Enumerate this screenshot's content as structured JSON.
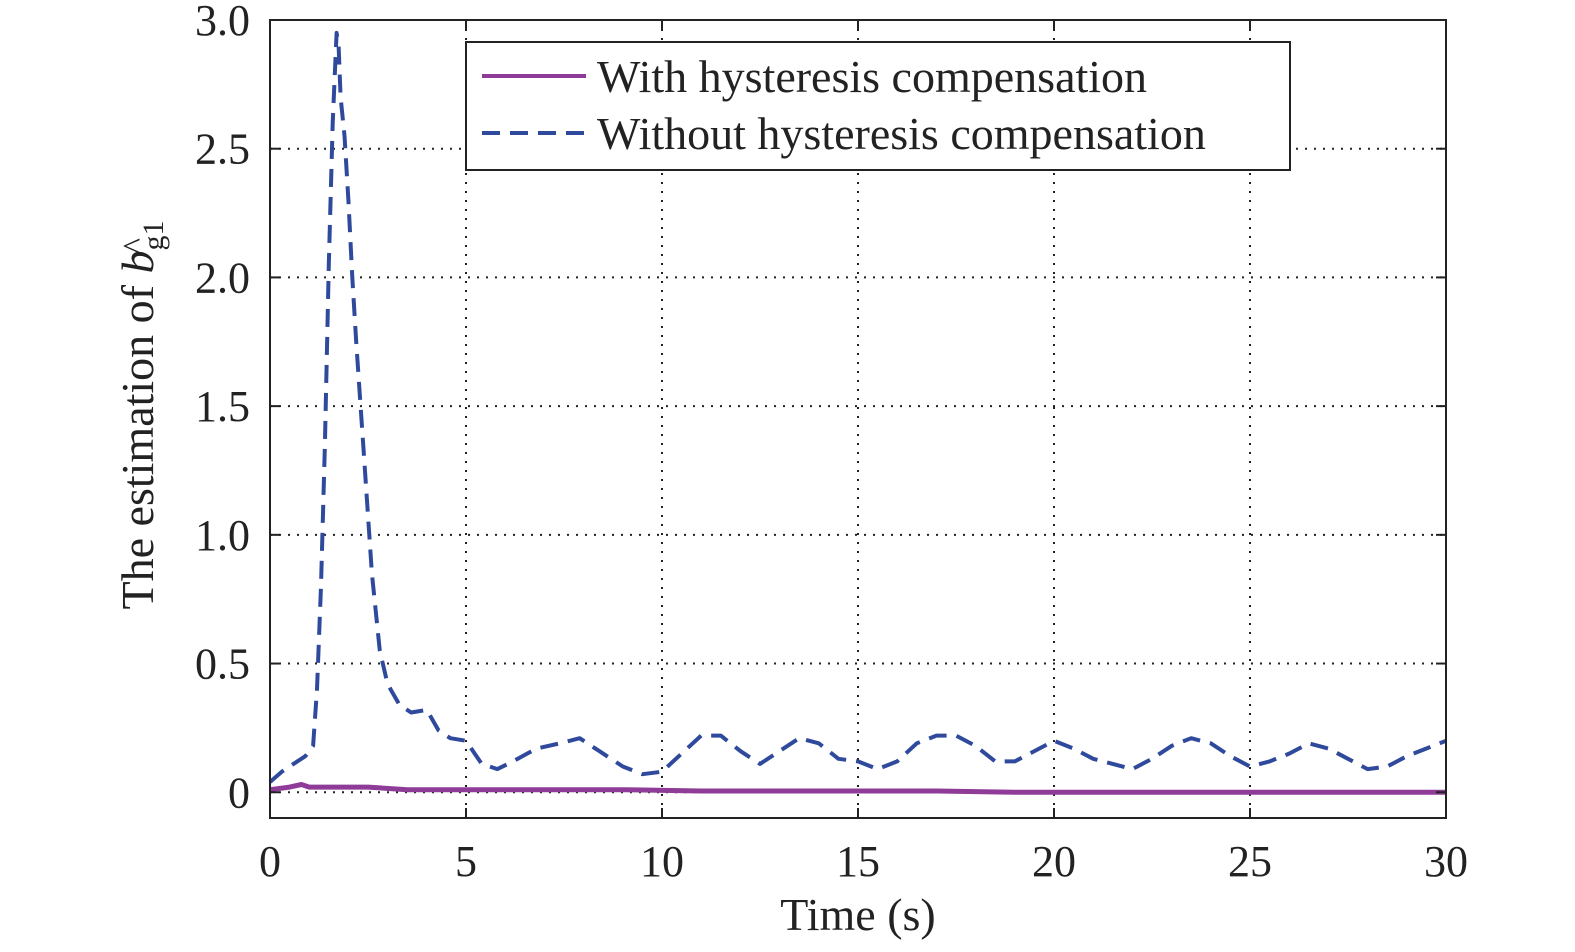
{
  "chart_data": {
    "type": "line",
    "xlabel": "Time (s)",
    "ylabel": "The estimation of ",
    "ylabel_symbol": "b",
    "ylabel_hat": "^",
    "ylabel_subscript": "g1",
    "xlim": [
      0,
      30
    ],
    "ylim": [
      -0.1,
      3.0
    ],
    "x_ticks": [
      0,
      5,
      10,
      15,
      20,
      25,
      30
    ],
    "x_tick_labels": [
      "0",
      "5",
      "10",
      "15",
      "20",
      "25",
      "30"
    ],
    "y_ticks": [
      0,
      0.5,
      1.0,
      1.5,
      2.0,
      2.5,
      3.0
    ],
    "y_tick_labels": [
      "0",
      "0.5",
      "1.0",
      "1.5",
      "2.0",
      "2.5",
      "3.0"
    ],
    "grid": true,
    "legend_position": "top-right",
    "series": [
      {
        "name": "With hysteresis compensation",
        "color": "#8e3c97",
        "dash": "solid",
        "x": [
          0,
          0.5,
          0.8,
          1.0,
          1.5,
          2.5,
          3.5,
          5,
          7,
          9,
          11,
          13,
          15,
          17,
          19,
          21,
          23,
          25,
          27,
          30
        ],
        "y": [
          0.01,
          0.02,
          0.03,
          0.02,
          0.02,
          0.02,
          0.01,
          0.01,
          0.01,
          0.01,
          0.005,
          0.005,
          0.005,
          0.005,
          0.0,
          0.0,
          0.0,
          0.0,
          0.0,
          0.0
        ]
      },
      {
        "name": "Without hysteresis compensation",
        "color": "#2f4a9c",
        "dash": "dashed",
        "x": [
          0,
          0.3,
          0.6,
          0.9,
          1.1,
          1.2,
          1.3,
          1.4,
          1.5,
          1.6,
          1.7,
          1.75,
          1.8,
          1.9,
          2.0,
          2.1,
          2.2,
          2.4,
          2.6,
          2.8,
          3.0,
          3.3,
          3.6,
          4.0,
          4.3,
          4.6,
          5.0,
          5.4,
          5.8,
          6.2,
          6.8,
          7.4,
          7.9,
          8.4,
          9.0,
          9.5,
          10.0,
          10.5,
          11.0,
          11.5,
          12.0,
          12.5,
          13.0,
          13.5,
          14.0,
          14.5,
          15.0,
          15.5,
          16.0,
          16.5,
          17.0,
          17.5,
          18.0,
          18.5,
          19.0,
          19.5,
          20.0,
          20.5,
          21.0,
          21.5,
          22.0,
          22.5,
          23.0,
          23.5,
          24.0,
          24.5,
          25.0,
          25.5,
          26.0,
          26.5,
          27.0,
          27.5,
          28.0,
          28.5,
          29.0,
          29.5,
          30.0
        ],
        "y": [
          0.04,
          0.08,
          0.11,
          0.14,
          0.18,
          0.4,
          0.8,
          1.35,
          2.05,
          2.6,
          2.95,
          2.9,
          2.7,
          2.55,
          2.3,
          2.0,
          1.75,
          1.3,
          0.85,
          0.55,
          0.42,
          0.34,
          0.31,
          0.32,
          0.24,
          0.21,
          0.2,
          0.11,
          0.09,
          0.12,
          0.17,
          0.19,
          0.21,
          0.16,
          0.1,
          0.07,
          0.08,
          0.15,
          0.22,
          0.22,
          0.16,
          0.11,
          0.16,
          0.21,
          0.19,
          0.13,
          0.12,
          0.09,
          0.12,
          0.19,
          0.22,
          0.22,
          0.18,
          0.12,
          0.12,
          0.16,
          0.2,
          0.17,
          0.13,
          0.11,
          0.09,
          0.13,
          0.18,
          0.21,
          0.19,
          0.14,
          0.1,
          0.12,
          0.15,
          0.19,
          0.17,
          0.13,
          0.09,
          0.1,
          0.14,
          0.17,
          0.2
        ]
      }
    ]
  }
}
